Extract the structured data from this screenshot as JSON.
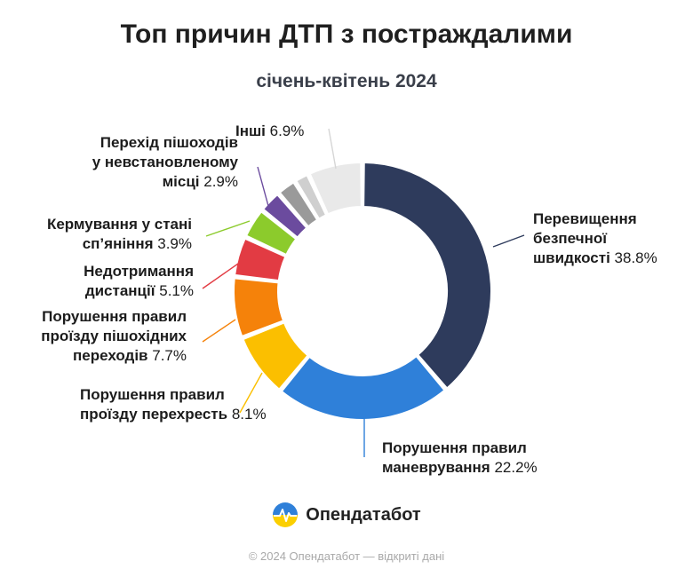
{
  "chart_data": {
    "type": "donut",
    "title": "Топ причин ДТП з постраждалими",
    "subtitle": "січень-квітень 2024",
    "unit": "%",
    "slices": [
      {
        "label_lines": [
          "Перевищення",
          "безпечної",
          "швидкості"
        ],
        "value": 38.8,
        "value_text": "38.8%",
        "color": "#2e3b5c"
      },
      {
        "label_lines": [
          "Порушення правил",
          "маневрування"
        ],
        "value": 22.2,
        "value_text": "22.2%",
        "color": "#2f80d9"
      },
      {
        "label_lines": [
          "Порушення правил",
          "проїзду перехресть"
        ],
        "value": 8.1,
        "value_text": "8.1%",
        "color": "#fbbf00"
      },
      {
        "label_lines": [
          "Порушення правил",
          "проїзду пішохідних",
          "переходів"
        ],
        "value": 7.7,
        "value_text": "7.7%",
        "color": "#f5820a"
      },
      {
        "label_lines": [
          "Недотримання",
          "дистанції"
        ],
        "value": 5.1,
        "value_text": "5.1%",
        "color": "#e23b43"
      },
      {
        "label_lines": [
          "Кермування у стані",
          "сп’яніння"
        ],
        "value": 3.9,
        "value_text": "3.9%",
        "color": "#8ccb2c"
      },
      {
        "label_lines": [
          "Перехід пішоходів",
          "у невстановленому",
          "місці"
        ],
        "value": 2.9,
        "value_text": "2.9%",
        "color": "#6b4b9e"
      },
      {
        "label_lines": [
          "Інші",
          "",
          ""
        ],
        "value": 2.5,
        "value_text": "",
        "color": "#9a9a9a"
      },
      {
        "label_lines": [
          "",
          "",
          ""
        ],
        "value": 1.9,
        "value_text": "",
        "color": "#cfcfcf"
      },
      {
        "label_lines": [
          "Інші"
        ],
        "value": 6.9,
        "value_text": "6.9%",
        "color": "#e9e9e9"
      }
    ]
  },
  "brand": {
    "name": "Опендатабот"
  },
  "footer": {
    "text": "© 2024 Опендатабот — відкриті дані"
  }
}
